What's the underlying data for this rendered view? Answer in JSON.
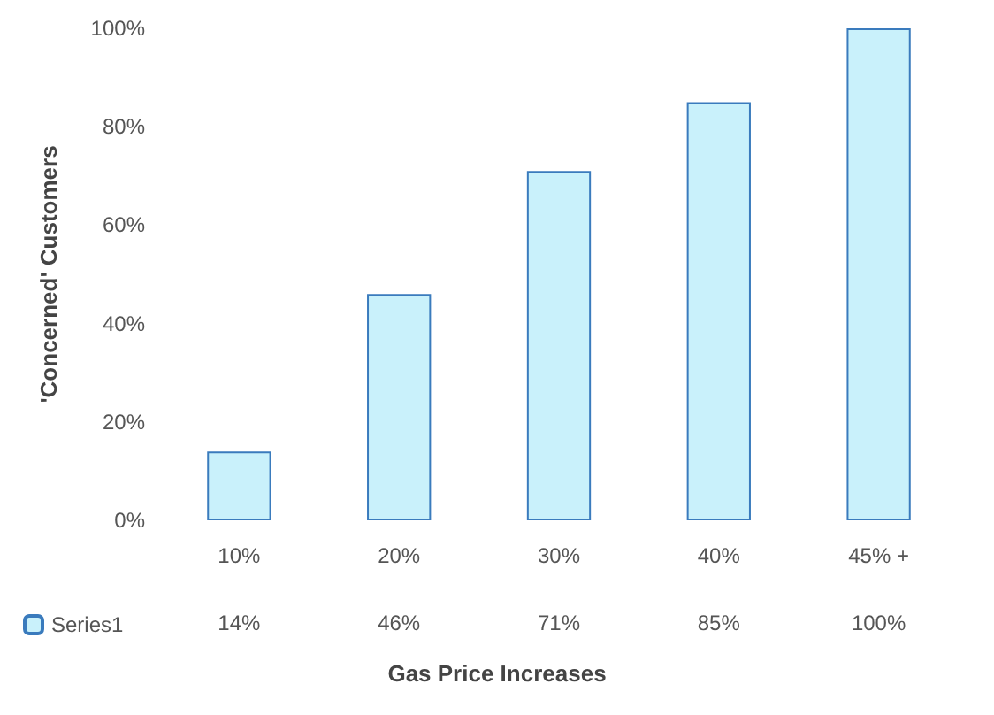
{
  "chart_data": {
    "type": "bar",
    "xlabel": "Gas Price Increases",
    "ylabel": "'Concerned' Customers",
    "categories": [
      "10%",
      "20%",
      "30%",
      "40%",
      "45% +"
    ],
    "series": [
      {
        "name": "Series1",
        "color": "#c9f1fb",
        "values": [
          14,
          46,
          71,
          85,
          100
        ],
        "value_labels": [
          "14%",
          "46%",
          "71%",
          "85%",
          "100%"
        ]
      }
    ],
    "ylim": [
      0,
      100
    ],
    "yticks": [
      {
        "value": 0,
        "label": "0%"
      },
      {
        "value": 20,
        "label": "20%"
      },
      {
        "value": 40,
        "label": "40%"
      },
      {
        "value": 60,
        "label": "60%"
      },
      {
        "value": 80,
        "label": "80%"
      },
      {
        "value": 100,
        "label": "100%"
      }
    ],
    "grid": false,
    "legend": "bottom left"
  }
}
